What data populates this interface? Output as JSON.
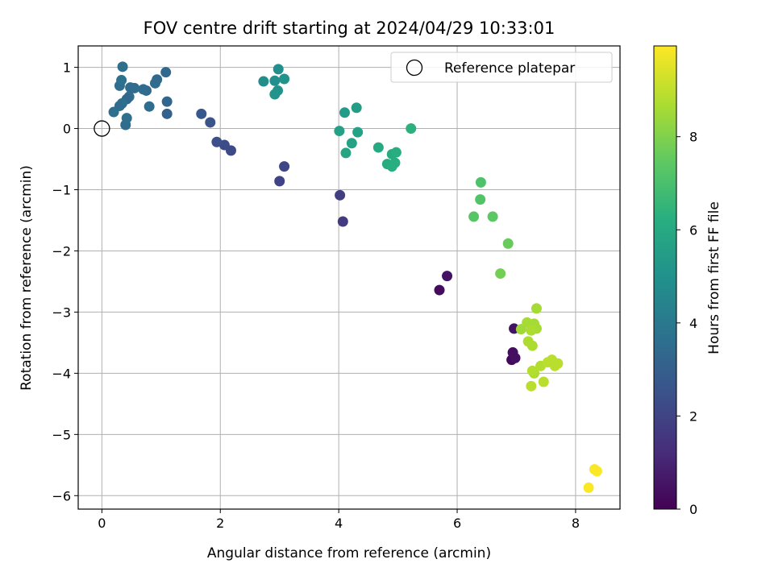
{
  "chart_data": {
    "type": "scatter",
    "title": "FOV centre drift starting at 2024/04/29 10:33:01",
    "xlabel": "Angular distance from reference (arcmin)",
    "ylabel": "Rotation from reference (arcmin)",
    "xlim": [
      -0.4,
      8.75
    ],
    "ylim": [
      -6.22,
      1.35
    ],
    "xticks": [
      0,
      2,
      4,
      6,
      8
    ],
    "yticks": [
      1,
      0,
      -1,
      -2,
      -3,
      -4,
      -5,
      -6
    ],
    "x_tick_labels": [
      "0",
      "2",
      "4",
      "6",
      "8"
    ],
    "y_tick_labels": [
      "1",
      "0",
      "−1",
      "−2",
      "−3",
      "−4",
      "−5",
      "−6"
    ],
    "grid": true,
    "legend": {
      "placement": "top-right",
      "entries": [
        {
          "label": "Reference platepar",
          "marker": "open-circle"
        }
      ]
    },
    "reference": {
      "x": 0,
      "y": 0
    },
    "colorbar": {
      "label": "Hours from first FF file",
      "colormap": "viridis",
      "range": [
        0,
        9.95
      ],
      "ticks": [
        0,
        2,
        4,
        6,
        8
      ],
      "tick_labels": [
        "0",
        "2",
        "4",
        "6",
        "8"
      ]
    },
    "points": [
      {
        "x": 5.7,
        "y": -2.64,
        "c": 0.3
      },
      {
        "x": 5.83,
        "y": -2.41,
        "c": 0.5
      },
      {
        "x": 6.92,
        "y": -3.78,
        "c": 0.2
      },
      {
        "x": 6.98,
        "y": -3.75,
        "c": 0.4
      },
      {
        "x": 6.94,
        "y": -3.66,
        "c": 0.4
      },
      {
        "x": 6.96,
        "y": -3.27,
        "c": 0.5
      },
      {
        "x": 4.07,
        "y": -1.52,
        "c": 1.7
      },
      {
        "x": 4.02,
        "y": -1.09,
        "c": 1.8
      },
      {
        "x": 3.0,
        "y": -0.86,
        "c": 2.0
      },
      {
        "x": 3.08,
        "y": -0.62,
        "c": 2.1
      },
      {
        "x": 2.18,
        "y": -0.36,
        "c": 2.2
      },
      {
        "x": 2.07,
        "y": -0.27,
        "c": 2.3
      },
      {
        "x": 1.94,
        "y": -0.22,
        "c": 2.4
      },
      {
        "x": 1.83,
        "y": 0.1,
        "c": 2.6
      },
      {
        "x": 1.68,
        "y": 0.24,
        "c": 2.7
      },
      {
        "x": 1.1,
        "y": 0.24,
        "c": 3.1
      },
      {
        "x": 1.1,
        "y": 0.44,
        "c": 3.3
      },
      {
        "x": 1.08,
        "y": 0.92,
        "c": 3.4
      },
      {
        "x": 0.93,
        "y": 0.8,
        "c": 3.4
      },
      {
        "x": 0.9,
        "y": 0.74,
        "c": 3.5
      },
      {
        "x": 0.8,
        "y": 0.36,
        "c": 3.5
      },
      {
        "x": 0.75,
        "y": 0.62,
        "c": 3.4
      },
      {
        "x": 0.7,
        "y": 0.64,
        "c": 3.5
      },
      {
        "x": 0.55,
        "y": 0.66,
        "c": 3.5
      },
      {
        "x": 0.48,
        "y": 0.67,
        "c": 3.5
      },
      {
        "x": 0.46,
        "y": 0.52,
        "c": 3.5
      },
      {
        "x": 0.42,
        "y": 0.48,
        "c": 3.4
      },
      {
        "x": 0.4,
        "y": 0.06,
        "c": 3.5
      },
      {
        "x": 0.42,
        "y": 0.17,
        "c": 3.6
      },
      {
        "x": 0.34,
        "y": 0.41,
        "c": 3.6
      },
      {
        "x": 0.3,
        "y": 0.37,
        "c": 3.5
      },
      {
        "x": 0.3,
        "y": 0.7,
        "c": 3.6
      },
      {
        "x": 0.33,
        "y": 0.79,
        "c": 3.7
      },
      {
        "x": 0.35,
        "y": 1.01,
        "c": 3.6
      },
      {
        "x": 0.2,
        "y": 0.27,
        "c": 3.6
      },
      {
        "x": 2.73,
        "y": 0.77,
        "c": 4.8
      },
      {
        "x": 2.92,
        "y": 0.78,
        "c": 4.9
      },
      {
        "x": 2.98,
        "y": 0.97,
        "c": 4.9
      },
      {
        "x": 3.08,
        "y": 0.81,
        "c": 5.0
      },
      {
        "x": 2.97,
        "y": 0.62,
        "c": 5.0
      },
      {
        "x": 2.92,
        "y": 0.56,
        "c": 5.1
      },
      {
        "x": 4.1,
        "y": 0.26,
        "c": 5.4
      },
      {
        "x": 4.3,
        "y": 0.34,
        "c": 5.5
      },
      {
        "x": 4.01,
        "y": -0.04,
        "c": 5.6
      },
      {
        "x": 4.32,
        "y": -0.06,
        "c": 5.7
      },
      {
        "x": 4.22,
        "y": -0.24,
        "c": 5.7
      },
      {
        "x": 4.12,
        "y": -0.4,
        "c": 5.8
      },
      {
        "x": 4.67,
        "y": -0.31,
        "c": 6.0
      },
      {
        "x": 4.9,
        "y": -0.42,
        "c": 6.1
      },
      {
        "x": 4.97,
        "y": -0.39,
        "c": 6.2
      },
      {
        "x": 4.82,
        "y": -0.58,
        "c": 6.1
      },
      {
        "x": 4.9,
        "y": -0.62,
        "c": 6.2
      },
      {
        "x": 4.95,
        "y": -0.56,
        "c": 6.2
      },
      {
        "x": 5.22,
        "y": 0.0,
        "c": 6.3
      },
      {
        "x": 6.4,
        "y": -0.88,
        "c": 7.1
      },
      {
        "x": 6.39,
        "y": -1.16,
        "c": 7.2
      },
      {
        "x": 6.28,
        "y": -1.44,
        "c": 7.3
      },
      {
        "x": 6.6,
        "y": -1.44,
        "c": 7.4
      },
      {
        "x": 6.86,
        "y": -1.88,
        "c": 7.6
      },
      {
        "x": 6.73,
        "y": -2.37,
        "c": 7.8
      },
      {
        "x": 7.34,
        "y": -2.94,
        "c": 8.6
      },
      {
        "x": 7.08,
        "y": -3.28,
        "c": 8.5
      },
      {
        "x": 7.18,
        "y": -3.17,
        "c": 8.6
      },
      {
        "x": 7.3,
        "y": -3.19,
        "c": 8.6
      },
      {
        "x": 7.34,
        "y": -3.27,
        "c": 8.6
      },
      {
        "x": 7.25,
        "y": -3.3,
        "c": 8.7
      },
      {
        "x": 7.2,
        "y": -3.48,
        "c": 8.7
      },
      {
        "x": 7.27,
        "y": -3.55,
        "c": 8.7
      },
      {
        "x": 7.3,
        "y": -4.0,
        "c": 8.7
      },
      {
        "x": 7.27,
        "y": -3.96,
        "c": 8.8
      },
      {
        "x": 7.41,
        "y": -3.88,
        "c": 8.8
      },
      {
        "x": 7.53,
        "y": -3.82,
        "c": 8.9
      },
      {
        "x": 7.6,
        "y": -3.78,
        "c": 8.9
      },
      {
        "x": 7.7,
        "y": -3.84,
        "c": 8.9
      },
      {
        "x": 7.65,
        "y": -3.88,
        "c": 8.9
      },
      {
        "x": 7.46,
        "y": -4.14,
        "c": 8.9
      },
      {
        "x": 7.25,
        "y": -4.21,
        "c": 8.9
      },
      {
        "x": 8.22,
        "y": -5.87,
        "c": 9.9
      },
      {
        "x": 8.32,
        "y": -5.57,
        "c": 9.9
      },
      {
        "x": 8.36,
        "y": -5.6,
        "c": 9.9
      }
    ]
  }
}
